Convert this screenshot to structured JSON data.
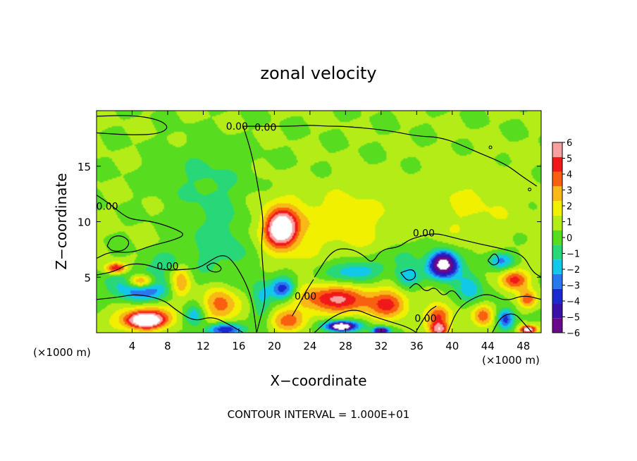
{
  "chart_data": {
    "type": "heatmap",
    "title": "zonal velocity",
    "xlabel": "X−coordinate",
    "ylabel": "Z−coordinate",
    "x_unit_left": "(×1000 m)",
    "x_unit_right": "(×1000 m)",
    "xlim": [
      0,
      50
    ],
    "ylim": [
      0,
      20
    ],
    "x_ticks": [
      4,
      8,
      12,
      16,
      20,
      24,
      28,
      32,
      36,
      40,
      44,
      48
    ],
    "y_ticks": [
      5,
      10,
      15
    ],
    "colorbar": {
      "min": -6,
      "max": 6,
      "ticks": [
        "6",
        "5",
        "4",
        "3",
        "2",
        "1",
        "0",
        "−1",
        "−2",
        "−3",
        "−4",
        "−5",
        "−6"
      ],
      "colors": [
        "#6a0a8a",
        "#3a10a8",
        "#1a2ad0",
        "#2a78f0",
        "#12c8e8",
        "#28d878",
        "#58dc20",
        "#b4ec18",
        "#f0f000",
        "#f8b818",
        "#f86010",
        "#f01818",
        "#f8a0a0"
      ]
    },
    "contour_label": "0.00",
    "contour_interval_text": "CONTOUR INTERVAL = 1.000E+01",
    "background_value": 0.5,
    "features": [
      {
        "x": 20.8,
        "z": 9.4,
        "value": 7.0,
        "sx": 1.5,
        "sz": 1.3
      },
      {
        "x": 20.8,
        "z": 9.4,
        "value": 2.5,
        "sx": 3.2,
        "sz": 2.8
      },
      {
        "x": 28.0,
        "z": 10.0,
        "value": 1.5,
        "sx": 5.0,
        "sz": 3.0
      },
      {
        "x": 42.0,
        "z": 11.5,
        "value": 1.0,
        "sx": 6.0,
        "sz": 3.5
      },
      {
        "x": 12.0,
        "z": 14.0,
        "value": -1.0,
        "sx": 5.0,
        "sz": 3.0
      },
      {
        "x": 14.0,
        "z": 8.0,
        "value": -1.5,
        "sx": 4.0,
        "sz": 4.0
      },
      {
        "x": 5.0,
        "z": 4.6,
        "value": 7.0,
        "sx": 1.6,
        "sz": 0.7
      },
      {
        "x": 5.0,
        "z": 4.2,
        "value": -5.0,
        "sx": 3.0,
        "sz": 1.4
      },
      {
        "x": 2.2,
        "z": 5.8,
        "value": 5.0,
        "sx": 1.2,
        "sz": 0.5
      },
      {
        "x": 5.5,
        "z": 1.1,
        "value": 7.0,
        "sx": 1.8,
        "sz": 0.6
      },
      {
        "x": 5.5,
        "z": 1.4,
        "value": 3.5,
        "sx": 3.2,
        "sz": 1.2
      },
      {
        "x": 9.5,
        "z": 4.5,
        "value": 3.0,
        "sx": 1.2,
        "sz": 1.5
      },
      {
        "x": 14.0,
        "z": 2.5,
        "value": 3.5,
        "sx": 2.0,
        "sz": 1.6
      },
      {
        "x": 14.5,
        "z": 0.3,
        "value": -5.0,
        "sx": 2.0,
        "sz": 0.6
      },
      {
        "x": 18.5,
        "z": 3.0,
        "value": -2.0,
        "sx": 1.2,
        "sz": 2.0
      },
      {
        "x": 21.0,
        "z": 4.0,
        "value": -4.5,
        "sx": 1.4,
        "sz": 1.0
      },
      {
        "x": 21.5,
        "z": 1.0,
        "value": 3.0,
        "sx": 2.0,
        "sz": 1.0
      },
      {
        "x": 27.0,
        "z": 3.0,
        "value": 4.5,
        "sx": 4.5,
        "sz": 1.3
      },
      {
        "x": 27.5,
        "z": 0.6,
        "value": -6.0,
        "sx": 2.2,
        "sz": 0.5
      },
      {
        "x": 27.5,
        "z": 0.55,
        "value": -8.0,
        "sx": 0.8,
        "sz": 0.25
      },
      {
        "x": 33.0,
        "z": 2.5,
        "value": 3.5,
        "sx": 2.0,
        "sz": 1.2
      },
      {
        "x": 32.0,
        "z": 0.2,
        "value": -7.0,
        "sx": 0.9,
        "sz": 0.3
      },
      {
        "x": 29.0,
        "z": 5.5,
        "value": -3.0,
        "sx": 3.0,
        "sz": 1.0
      },
      {
        "x": 35.0,
        "z": 5.0,
        "value": -2.5,
        "sx": 1.4,
        "sz": 1.0
      },
      {
        "x": 39.0,
        "z": 5.8,
        "value": -5.0,
        "sx": 1.8,
        "sz": 1.0
      },
      {
        "x": 39.0,
        "z": 6.5,
        "value": -5.0,
        "sx": 1.4,
        "sz": 1.0
      },
      {
        "x": 42.0,
        "z": 4.0,
        "value": -2.5,
        "sx": 1.5,
        "sz": 1.5
      },
      {
        "x": 38.5,
        "z": 1.5,
        "value": 4.0,
        "sx": 1.4,
        "sz": 1.0
      },
      {
        "x": 38.5,
        "z": 0.3,
        "value": 5.0,
        "sx": 1.0,
        "sz": 0.6
      },
      {
        "x": 43.5,
        "z": 1.5,
        "value": 3.5,
        "sx": 1.2,
        "sz": 1.0
      },
      {
        "x": 47.0,
        "z": 4.8,
        "value": 4.0,
        "sx": 1.6,
        "sz": 0.9
      },
      {
        "x": 48.5,
        "z": 3.0,
        "value": 3.5,
        "sx": 1.0,
        "sz": 0.8
      },
      {
        "x": 48.5,
        "z": 0.3,
        "value": 7.0,
        "sx": 0.9,
        "sz": 0.35
      },
      {
        "x": 46.0,
        "z": 1.2,
        "value": -4.5,
        "sx": 1.0,
        "sz": 0.9
      },
      {
        "x": 45.5,
        "z": 6.5,
        "value": -3.0,
        "sx": 1.5,
        "sz": 0.8
      },
      {
        "x": 11.0,
        "z": 1.5,
        "value": -3.0,
        "sx": 1.2,
        "sz": 0.9
      },
      {
        "x": 8.0,
        "z": 6.5,
        "value": -1.5,
        "sx": 1.5,
        "sz": 0.8
      },
      {
        "x": 34.5,
        "z": 7.0,
        "value": -1.5,
        "sx": 2.0,
        "sz": 1.0
      }
    ],
    "contours": [
      {
        "label": "0.00",
        "label_at": [
          15.8,
          18.6
        ],
        "points": [
          [
            0,
            18.0
          ],
          [
            4,
            17.8
          ],
          [
            7,
            17.9
          ],
          [
            8.2,
            18.5
          ],
          [
            7,
            19.2
          ],
          [
            4,
            19.6
          ],
          [
            0,
            19.5
          ]
        ]
      },
      {
        "label": "0.00",
        "label_at": [
          19.0,
          18.5
        ],
        "points": [
          [
            16.5,
            18.6
          ],
          [
            18.5,
            18.6
          ],
          [
            22,
            18.6
          ],
          [
            24,
            18.7
          ],
          [
            26,
            18.6
          ],
          [
            28,
            18.6
          ],
          [
            33,
            18.2
          ],
          [
            36,
            17.7
          ],
          [
            39,
            17.6
          ],
          [
            43,
            16.2
          ],
          [
            46,
            15.2
          ],
          [
            48,
            14.0
          ],
          [
            49.5,
            13.2
          ]
        ]
      },
      {
        "label": "",
        "label_at": null,
        "points": [
          [
            16.5,
            18.6
          ],
          [
            17.5,
            16.0
          ],
          [
            18.2,
            13.0
          ],
          [
            18.8,
            10.0
          ],
          [
            18.5,
            8.0
          ],
          [
            18.8,
            5.0
          ],
          [
            19.0,
            3.0
          ],
          [
            18.5,
            1.5
          ],
          [
            18.0,
            0.0
          ]
        ]
      },
      {
        "label": "0.00",
        "label_at": [
          1.2,
          11.4
        ],
        "points": [
          [
            0,
            12.4
          ],
          [
            1.5,
            11.6
          ],
          [
            3,
            10.6
          ],
          [
            4,
            10.2
          ],
          [
            6.5,
            10.0
          ],
          [
            9,
            9.3
          ],
          [
            10,
            8.8
          ],
          [
            8.5,
            8.3
          ],
          [
            6,
            7.8
          ],
          [
            4,
            7.2
          ],
          [
            1.5,
            7.3
          ],
          [
            0,
            6.7
          ]
        ]
      },
      {
        "label": "0.00",
        "label_at": [
          8.0,
          6.0
        ],
        "points": [
          [
            0,
            5.2
          ],
          [
            2,
            5.5
          ],
          [
            3.5,
            6.2
          ],
          [
            5.5,
            6.2
          ],
          [
            7.5,
            5.6
          ],
          [
            10,
            5.7
          ],
          [
            11.5,
            5.8
          ],
          [
            13,
            6.6
          ],
          [
            14,
            7.0
          ],
          [
            15,
            6.8
          ],
          [
            16.5,
            5.0
          ],
          [
            17.5,
            3.0
          ],
          [
            18.0,
            0.0
          ]
        ]
      },
      {
        "label": "0.00",
        "label_at": [
          36.8,
          9.0
        ],
        "points": [
          [
            24.5,
            5.0
          ],
          [
            26.5,
            7.5
          ],
          [
            28.5,
            7.6
          ],
          [
            30,
            7.0
          ],
          [
            31,
            6.2
          ],
          [
            32,
            7.5
          ],
          [
            34,
            7.7
          ],
          [
            35,
            8.3
          ],
          [
            36,
            8.6
          ],
          [
            38,
            9.0
          ],
          [
            40,
            8.6
          ],
          [
            43,
            8.0
          ],
          [
            46,
            7.5
          ],
          [
            48,
            7.0
          ],
          [
            49,
            5.5
          ],
          [
            50,
            5.0
          ]
        ]
      },
      {
        "label": "0.00",
        "label_at": [
          23.5,
          3.3
        ],
        "points": [
          [
            22.0,
            1.5
          ],
          [
            22.8,
            2.6
          ],
          [
            23.6,
            3.8
          ],
          [
            24.4,
            4.8
          ]
        ]
      },
      {
        "label": "0.00",
        "label_at": [
          37.0,
          1.3
        ],
        "points": [
          [
            36.0,
            0.2
          ],
          [
            36.6,
            1.0
          ],
          [
            37.4,
            2.0
          ],
          [
            38.2,
            2.4
          ]
        ]
      },
      {
        "label": "",
        "label_at": null,
        "points": [
          [
            1.2,
            7.8
          ],
          [
            1.6,
            8.6
          ],
          [
            2.8,
            8.8
          ],
          [
            3.8,
            8.2
          ],
          [
            3.2,
            7.4
          ],
          [
            1.8,
            7.3
          ],
          [
            1.2,
            7.8
          ]
        ]
      },
      {
        "label": "",
        "label_at": null,
        "points": [
          [
            12.4,
            6.0
          ],
          [
            13.2,
            6.4
          ],
          [
            14.2,
            5.8
          ],
          [
            13.6,
            5.4
          ],
          [
            12.6,
            5.6
          ],
          [
            12.4,
            6.0
          ]
        ]
      },
      {
        "label": "",
        "label_at": null,
        "points": [
          [
            34.2,
            5.4
          ],
          [
            35.6,
            5.8
          ],
          [
            36.0,
            5.0
          ],
          [
            35.0,
            4.6
          ],
          [
            34.2,
            5.4
          ]
        ]
      },
      {
        "label": "",
        "label_at": null,
        "points": [
          [
            44.0,
            6.5
          ],
          [
            44.8,
            7.3
          ],
          [
            45.4,
            6.4
          ],
          [
            44.6,
            6.0
          ],
          [
            44.0,
            6.5
          ]
        ]
      },
      {
        "label": "",
        "label_at": null,
        "points": [
          [
            0,
            3.0
          ],
          [
            2.5,
            3.2
          ],
          [
            4.5,
            3.5
          ],
          [
            7.5,
            3.0
          ],
          [
            9.0,
            2.0
          ],
          [
            11.0,
            1.0
          ],
          [
            13.0,
            1.5
          ],
          [
            15.0,
            0.7
          ],
          [
            16.5,
            0.0
          ]
        ]
      },
      {
        "label": "",
        "label_at": null,
        "points": [
          [
            24.5,
            0.0
          ],
          [
            26.5,
            1.5
          ],
          [
            29.0,
            2.2
          ],
          [
            31.0,
            1.5
          ],
          [
            33.0,
            1.0
          ],
          [
            35.0,
            0.5
          ],
          [
            36.0,
            0.0
          ]
        ]
      },
      {
        "label": "",
        "label_at": null,
        "points": [
          [
            39.5,
            0.0
          ],
          [
            40.5,
            2.0
          ],
          [
            42.0,
            3.0
          ],
          [
            44.0,
            3.6
          ],
          [
            46.0,
            2.8
          ],
          [
            48.0,
            3.4
          ],
          [
            50.0,
            3.0
          ]
        ]
      },
      {
        "label": "",
        "label_at": null,
        "points": [
          [
            44.5,
            0.0
          ],
          [
            45.5,
            1.5
          ],
          [
            47.0,
            1.8
          ],
          [
            48.0,
            0.9
          ],
          [
            49.0,
            0.0
          ]
        ]
      },
      {
        "label": "",
        "label_at": null,
        "points": [
          [
            35.2,
            4.0
          ],
          [
            36.0,
            4.6
          ],
          [
            37.0,
            3.6
          ],
          [
            38.0,
            4.2
          ],
          [
            39.0,
            3.2
          ],
          [
            40.0,
            4.0
          ],
          [
            41.0,
            3.0
          ]
        ]
      }
    ],
    "points_markers": [
      [
        44.3,
        16.7
      ],
      [
        48.7,
        12.9
      ]
    ]
  }
}
